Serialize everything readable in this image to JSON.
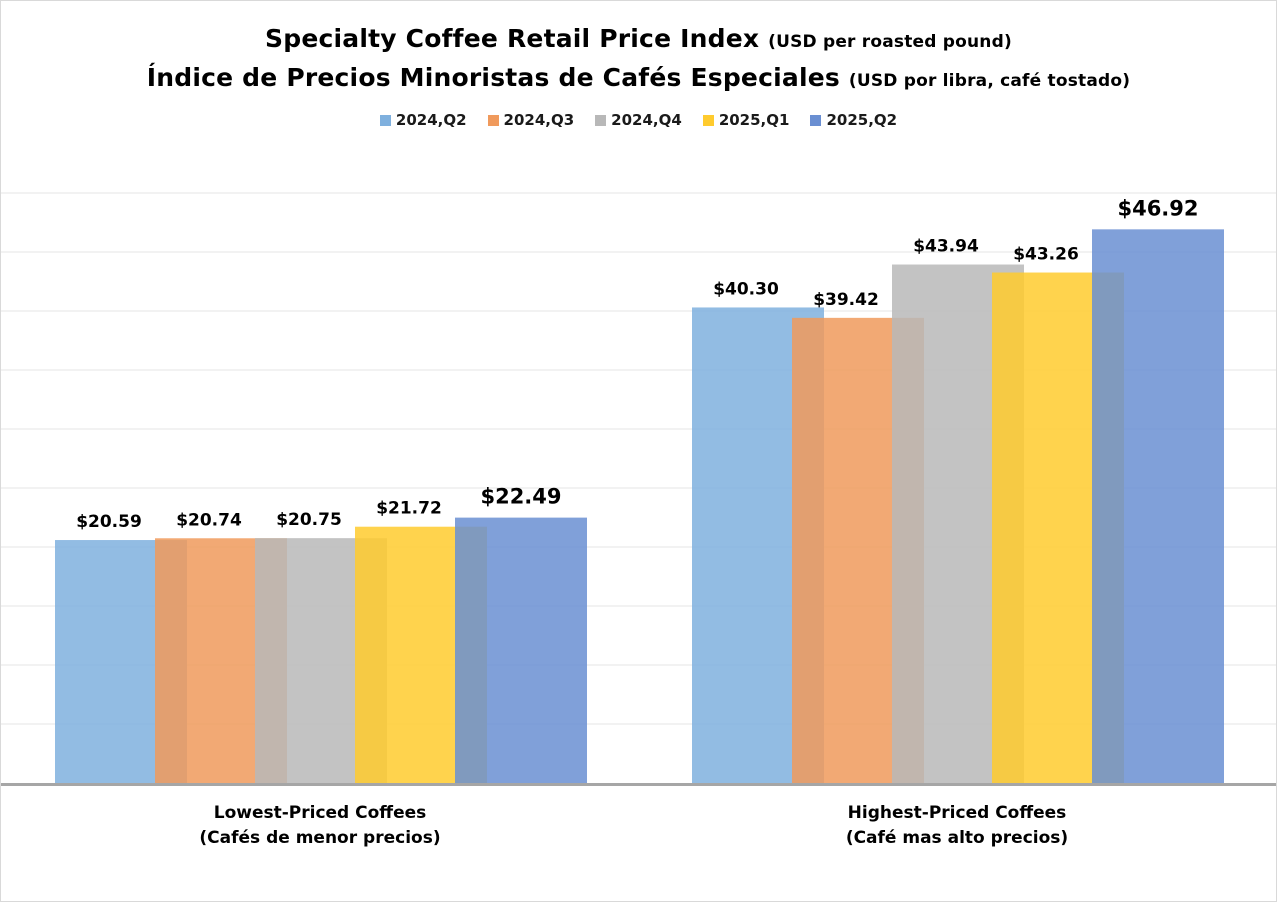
{
  "chart_data": {
    "type": "bar",
    "title": "Specialty Coffee Retail Price Index",
    "title_units": "(USD per roasted pound)",
    "title_es": "Índice de Precios Minoristas de Cafés Especiales",
    "title_es_units": "(USD por libra, café tostado)",
    "categories": [
      {
        "line1": "Lowest-Priced Coffees",
        "line2": "(Cafés de menor precios)"
      },
      {
        "line1": "Highest-Priced Coffees",
        "line2": "(Café mas alto precios)"
      }
    ],
    "series": [
      {
        "name": "2024,Q2",
        "color": "#7fb0de",
        "values": [
          20.59,
          40.3
        ],
        "labels": [
          "$20.59",
          "$40.30"
        ]
      },
      {
        "name": "2024,Q3",
        "color": "#f09a5c",
        "values": [
          20.74,
          39.42
        ],
        "labels": [
          "$20.74",
          "$39.42"
        ]
      },
      {
        "name": "2024,Q4",
        "color": "#b8b8b8",
        "values": [
          20.75,
          43.94
        ],
        "labels": [
          "$20.75",
          "$43.94"
        ]
      },
      {
        "name": "2025,Q1",
        "color": "#ffcb2e",
        "values": [
          21.72,
          43.26
        ],
        "labels": [
          "$21.72",
          "$43.26"
        ]
      },
      {
        "name": "2025,Q2",
        "color": "#6a8fd2",
        "values": [
          22.49,
          46.92
        ],
        "labels": [
          "$22.49",
          "$46.92"
        ]
      }
    ],
    "ylim": [
      0,
      50
    ],
    "y_grid_step": 5,
    "y_ticks_shown": false,
    "grid": true,
    "legend_position": "top-center",
    "bars_overlap": true,
    "emphasized_series": "2025,Q2"
  }
}
